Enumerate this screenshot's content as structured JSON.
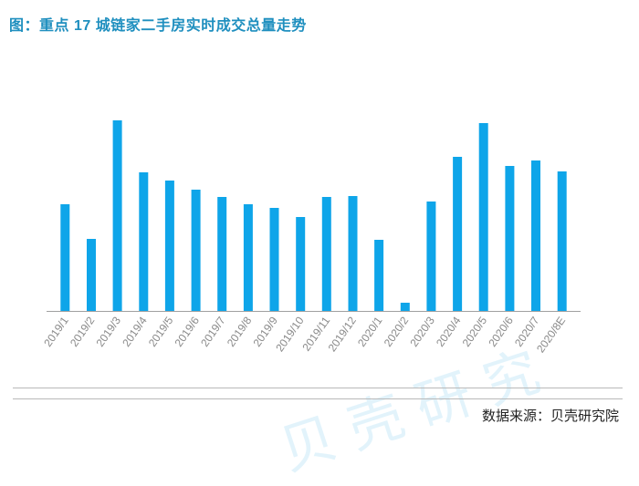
{
  "header": {
    "title": "图：重点 17 城链家二手房实时成交总量走势"
  },
  "footer": {
    "source": "数据来源：贝壳研究院"
  },
  "watermark": {
    "text": "贝壳研究"
  },
  "colors": {
    "bar": "#0ea5e9",
    "title": "#1f8fbf",
    "axis": "#a0a0a0",
    "tick": "#8a8a8a"
  },
  "chart_data": {
    "type": "bar",
    "title": "图：重点 17 城链家二手房实时成交总量走势",
    "categories": [
      "2019/1",
      "2019/2",
      "2019/3",
      "2019/4",
      "2019/5",
      "2019/6",
      "2019/7",
      "2019/8",
      "2019/9",
      "2019/10",
      "2019/11",
      "2019/12",
      "2020/1",
      "2020/2",
      "2020/3",
      "2020/4",
      "2020/5",
      "2020/6",
      "2020/7",
      "2020/8E"
    ],
    "values": [
      117,
      79,
      209,
      152,
      143,
      133,
      125,
      117,
      113,
      103,
      125,
      126,
      78,
      9,
      120,
      169,
      206,
      159,
      165,
      153
    ],
    "xlabel": "",
    "ylabel": "",
    "ylim": [
      0,
      220
    ],
    "grid": false,
    "legend": "none"
  }
}
